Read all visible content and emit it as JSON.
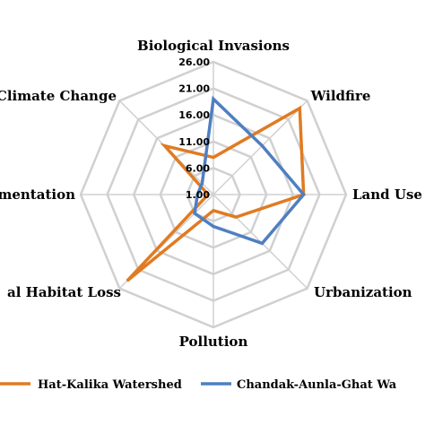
{
  "chart_data": {
    "type": "radar",
    "axes": [
      "Biological Invasions",
      "Wildfire",
      "Land Use",
      "Urbanization",
      "Pollution",
      "al Habitat Loss",
      "mentation",
      "Climate Change"
    ],
    "ticks": [
      "1.00",
      "6.00",
      "11.00",
      "16.00",
      "21.00",
      "26.00"
    ],
    "range": [
      1,
      26
    ],
    "series": [
      {
        "name": "Hat-Kalika Watershed",
        "color": "#e07b22",
        "values": [
          8,
          24,
          18,
          7,
          4,
          24,
          2,
          14
        ]
      },
      {
        "name": "Chandak-Aunla-Ghat Wa",
        "color": "#4f7fc0",
        "values": [
          19,
          14,
          18,
          14,
          7,
          6,
          4,
          4
        ]
      }
    ],
    "grid": true,
    "legend_position": "bottom"
  }
}
